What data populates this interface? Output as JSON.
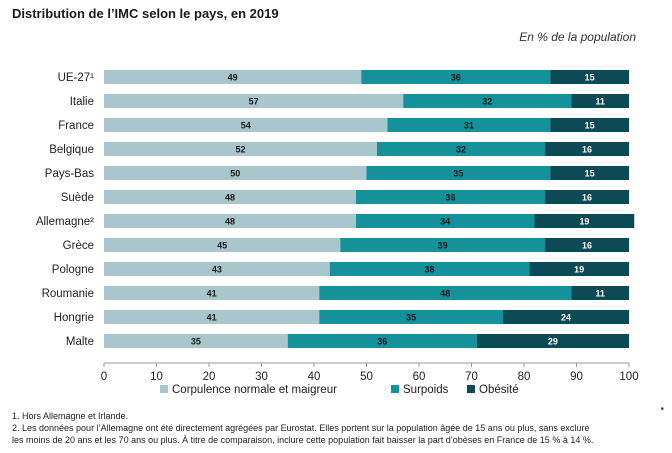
{
  "title": "Distribution de l’IMC selon le pays, en 2019",
  "subtitle": "En % de la population",
  "chart_data": {
    "type": "bar",
    "orientation": "horizontal",
    "stacked": true,
    "categories": [
      "UE-27¹",
      "Italie",
      "France",
      "Belgique",
      "Pays-Bas",
      "Suède",
      "Allemagne²",
      "Grèce",
      "Pologne",
      "Roumanie",
      "Hongrie",
      "Malte"
    ],
    "series": [
      {
        "name": "Corpulence normale et maigreur",
        "color": "#a9c6cc",
        "label_color": "#1a1a1a",
        "values": [
          49,
          57,
          54,
          52,
          50,
          48,
          48,
          45,
          43,
          41,
          41,
          35
        ]
      },
      {
        "name": "Surpoids",
        "color": "#14919b",
        "label_color": "#1a1a1a",
        "values": [
          36,
          32,
          31,
          32,
          35,
          36,
          34,
          39,
          38,
          48,
          35,
          36
        ]
      },
      {
        "name": "Obésité",
        "color": "#0c4a55",
        "label_color": "#ffffff",
        "values": [
          15,
          11,
          15,
          16,
          15,
          16,
          19,
          16,
          19,
          11,
          24,
          29
        ]
      }
    ],
    "xlim": [
      0,
      100
    ],
    "xticks": [
      0,
      10,
      20,
      30,
      40,
      50,
      60,
      70,
      80,
      90,
      100
    ],
    "xlabel": "",
    "ylabel": "",
    "legend_position": "bottom",
    "grid": false
  },
  "notes": [
    "1. Hors Allemagne et Irlande.",
    "2. Les données pour l’Allemagne ont été directement agrégées par Eurostat. Elles portent sur la population âgée de 15 ans ou plus, sans exclure",
    "les moins de 20 ans et les 70 ans ou plus. À titre de comparaison, inclure cette population fait baisser la part d’obèses en France de 15 % à 14 %."
  ]
}
